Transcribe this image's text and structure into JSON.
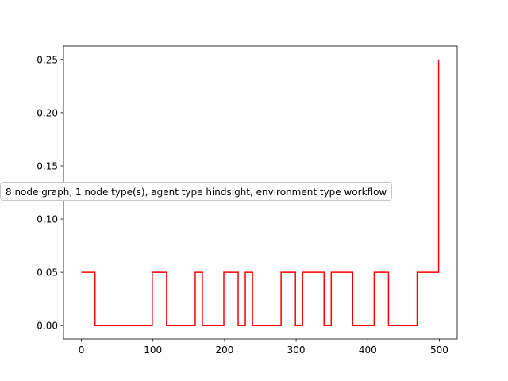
{
  "chart_data": {
    "type": "line",
    "title": "",
    "xlabel": "",
    "ylabel": "",
    "xlim": [
      -25,
      525
    ],
    "ylim": [
      -0.0125,
      0.2625
    ],
    "xticks": [
      0,
      100,
      200,
      300,
      400,
      500
    ],
    "yticks": [
      0.0,
      0.05,
      0.1,
      0.15,
      0.2,
      0.25
    ],
    "xtick_labels": [
      "0",
      "100",
      "200",
      "300",
      "400",
      "500"
    ],
    "ytick_labels": [
      "0.00",
      "0.05",
      "0.10",
      "0.15",
      "0.20",
      "0.25"
    ],
    "grid": false,
    "line_color": "#ff0000",
    "series": [
      {
        "x": [
          0,
          19,
          19,
          99,
          99,
          119,
          119,
          159,
          159,
          169,
          169,
          199,
          199,
          219,
          219,
          229,
          229,
          239,
          239,
          279,
          279,
          299,
          299,
          309,
          309,
          339,
          339,
          349,
          349,
          379,
          379,
          409,
          409,
          429,
          429,
          469,
          469,
          499,
          499
        ],
        "y": [
          0.05,
          0.05,
          0.0,
          0.0,
          0.05,
          0.05,
          0.0,
          0.0,
          0.05,
          0.05,
          0.0,
          0.0,
          0.05,
          0.05,
          0.0,
          0.0,
          0.05,
          0.05,
          0.0,
          0.0,
          0.05,
          0.05,
          0.0,
          0.0,
          0.05,
          0.05,
          0.0,
          0.0,
          0.05,
          0.05,
          0.0,
          0.0,
          0.05,
          0.05,
          0.0,
          0.0,
          0.05,
          0.05,
          0.25
        ]
      }
    ],
    "annotation": "8 node graph, 1 node type(s), agent type hindsight, environment type workflow"
  }
}
